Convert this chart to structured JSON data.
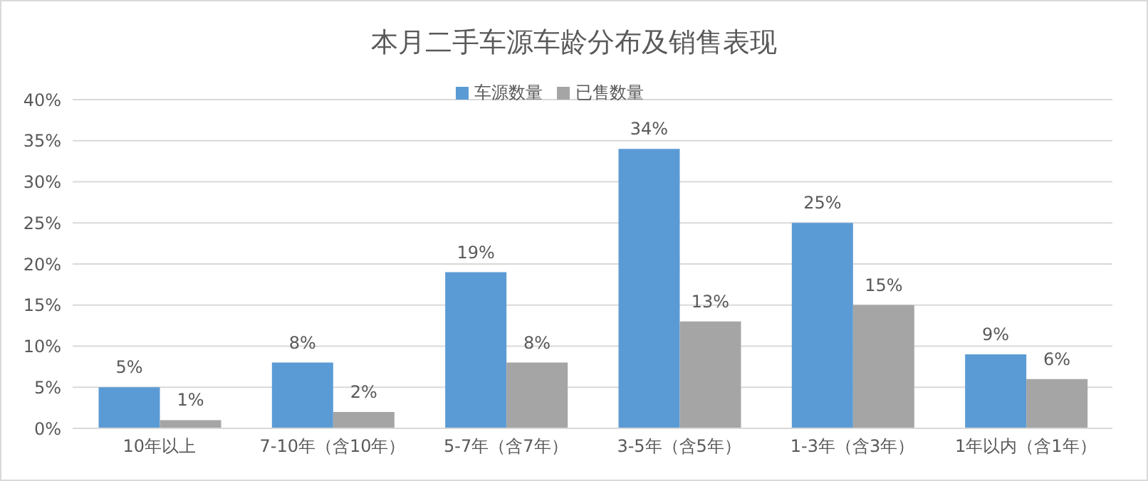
{
  "chart_data": {
    "type": "bar",
    "title": "本月二手车源车龄分布及销售表现",
    "categories": [
      "10年以上",
      "7-10年（含10年）",
      "5-7年（含7年）",
      "3-5年（含5年）",
      "1-3年（含3年）",
      "1年以内（含1年）"
    ],
    "series": [
      {
        "name": "车源数量",
        "color": "#5b9bd5",
        "values": [
          5,
          8,
          19,
          34,
          25,
          9
        ],
        "value_labels": [
          "5%",
          "8%",
          "19%",
          "34%",
          "25%",
          "9%"
        ]
      },
      {
        "name": "已售数量",
        "color": "#a5a5a5",
        "values": [
          1,
          2,
          8,
          13,
          15,
          6
        ],
        "value_labels": [
          "1%",
          "2%",
          "8%",
          "13%",
          "15%",
          "6%"
        ]
      }
    ],
    "ylim": [
      0,
      40
    ],
    "yticks": [
      {
        "value": 0,
        "label": "0%"
      },
      {
        "value": 5,
        "label": "5%"
      },
      {
        "value": 10,
        "label": "10%"
      },
      {
        "value": 15,
        "label": "15%"
      },
      {
        "value": 20,
        "label": "20%"
      },
      {
        "value": 25,
        "label": "25%"
      },
      {
        "value": 30,
        "label": "30%"
      },
      {
        "value": 35,
        "label": "35%"
      },
      {
        "value": 40,
        "label": "40%"
      }
    ],
    "grid": "y",
    "legend": "top"
  }
}
